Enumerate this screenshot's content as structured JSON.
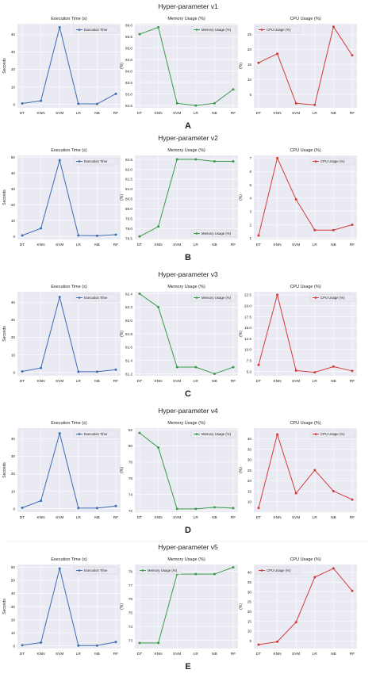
{
  "colors": {
    "execution": "#3d6cb4",
    "memory": "#3a9a4a",
    "cpu": "#d23a3a",
    "plot_bg": "#eaeaf2",
    "grid": "#ffffff"
  },
  "chart_data": [
    {
      "group_title": "Hyper-parameter v1",
      "group_letter": "A",
      "charts": [
        {
          "type": "line",
          "title": "Execution Time (s)",
          "ylabel": "Seconds",
          "series_name": "Execution Time",
          "legend": "top-right",
          "categories": [
            "DT",
            "KNN",
            "SVM",
            "LR",
            "NB",
            "RF"
          ],
          "values": [
            0.5,
            2,
            44,
            0.3,
            0.2,
            6
          ],
          "ylim": [
            -2,
            46
          ],
          "ticks": [
            "0",
            "10",
            "20",
            "30",
            "40"
          ],
          "tick_values": [
            0,
            10,
            20,
            30,
            40
          ]
        },
        {
          "type": "line",
          "title": "Memory Usage (%)",
          "ylabel": "(%)",
          "series_name": "Memory Usage (%)",
          "legend": "top-right",
          "categories": [
            "DT",
            "KNN",
            "SVM",
            "LR",
            "NB",
            "RF"
          ],
          "values": [
            85.6,
            85.9,
            82.6,
            82.5,
            82.6,
            83.2
          ],
          "ylim": [
            82.4,
            86.05
          ],
          "ticks": [
            "82.5",
            "83.0",
            "83.5",
            "84.0",
            "84.5",
            "85.0",
            "85.5",
            "86.0"
          ],
          "tick_values": [
            82.5,
            83.0,
            83.5,
            84.0,
            84.5,
            85.0,
            85.5,
            86.0
          ]
        },
        {
          "type": "line",
          "title": "CPU Usage (%)",
          "ylabel": "(%)",
          "series_name": "CPU Usage (%)",
          "legend": "top-left",
          "categories": [
            "DT",
            "KNN",
            "SVM",
            "LR",
            "NB",
            "RF"
          ],
          "values": [
            15.5,
            18.5,
            2,
            1.5,
            27.5,
            18
          ],
          "ylim": [
            0.5,
            28.5
          ],
          "ticks": [
            "5",
            "10",
            "15",
            "20",
            "25"
          ],
          "tick_values": [
            5,
            10,
            15,
            20,
            25
          ]
        }
      ]
    },
    {
      "group_title": "Hyper-parameter v2",
      "group_letter": "B",
      "charts": [
        {
          "type": "line",
          "title": "Execution Time (s)",
          "ylabel": "Seconds",
          "series_name": "Execution Time",
          "legend": "top-right",
          "categories": [
            "DT",
            "KNN",
            "SVM",
            "LR",
            "NB",
            "RF"
          ],
          "values": [
            0.5,
            5,
            48,
            0.5,
            0.3,
            1
          ],
          "ylim": [
            -2,
            51
          ],
          "ticks": [
            "0",
            "10",
            "20",
            "30",
            "40",
            "50"
          ],
          "tick_values": [
            0,
            10,
            20,
            30,
            40,
            50
          ]
        },
        {
          "type": "line",
          "title": "Memory Usage (%)",
          "ylabel": "(%)",
          "series_name": "Memory Usage (%)",
          "legend": "bottom-right",
          "categories": [
            "DT",
            "KNN",
            "SVM",
            "LR",
            "NB",
            "RF"
          ],
          "values": [
            78.6,
            79.1,
            82.5,
            82.5,
            82.4,
            82.4
          ],
          "ylim": [
            78.45,
            82.7
          ],
          "ticks": [
            "78.5",
            "79.0",
            "79.5",
            "80.0",
            "80.5",
            "81.0",
            "81.5",
            "82.0",
            "82.5"
          ],
          "tick_values": [
            78.5,
            79.0,
            79.5,
            80.0,
            80.5,
            81.0,
            81.5,
            82.0,
            82.5
          ]
        },
        {
          "type": "line",
          "title": "CPU Usage (%)",
          "ylabel": "(%)",
          "series_name": "CPU Usage (%)",
          "legend": "top-right",
          "categories": [
            "DT",
            "KNN",
            "SVM",
            "LR",
            "NB",
            "RF"
          ],
          "values": [
            1.2,
            7,
            3.9,
            1.6,
            1.6,
            2
          ],
          "ylim": [
            0.9,
            7.2
          ],
          "ticks": [
            "1",
            "2",
            "3",
            "4",
            "5",
            "6",
            "7"
          ],
          "tick_values": [
            1,
            2,
            3,
            4,
            5,
            6,
            7
          ]
        }
      ]
    },
    {
      "group_title": "Hyper-parameter v3",
      "group_letter": "C",
      "charts": [
        {
          "type": "line",
          "title": "Execution Time (s)",
          "ylabel": "Seconds",
          "series_name": "Execution Time",
          "legend": "top-right",
          "categories": [
            "DT",
            "KNN",
            "SVM",
            "LR",
            "NB",
            "RF"
          ],
          "values": [
            0.5,
            2.5,
            43,
            0.3,
            0.3,
            1.5
          ],
          "ylim": [
            -2,
            46
          ],
          "ticks": [
            "0",
            "10",
            "20",
            "30",
            "40"
          ],
          "tick_values": [
            0,
            10,
            20,
            30,
            40
          ]
        },
        {
          "type": "line",
          "title": "Memory Usage (%)",
          "ylabel": "(%)",
          "series_name": "Memory Usage (%)",
          "legend": "top-right",
          "categories": [
            "DT",
            "KNN",
            "SVM",
            "LR",
            "NB",
            "RF"
          ],
          "values": [
            82.4,
            82.2,
            81.3,
            81.3,
            81.2,
            81.3
          ],
          "ylim": [
            81.17,
            82.43
          ],
          "ticks": [
            "81.2",
            "81.4",
            "81.6",
            "81.8",
            "82.0",
            "82.2",
            "82.4"
          ],
          "tick_values": [
            81.2,
            81.4,
            81.6,
            81.8,
            82.0,
            82.2,
            82.4
          ]
        },
        {
          "type": "line",
          "title": "CPU Usage (%)",
          "ylabel": "(%)",
          "series_name": "CPU Usage (%)",
          "legend": "top-right",
          "categories": [
            "DT",
            "KNN",
            "SVM",
            "LR",
            "NB",
            "RF"
          ],
          "values": [
            6.5,
            22.5,
            5.2,
            4.8,
            6.1,
            5.1
          ],
          "ylim": [
            4,
            23.2
          ],
          "ticks": [
            "5.0",
            "7.5",
            "10.0",
            "12.5",
            "15.0",
            "17.5",
            "20.0",
            "22.5"
          ],
          "tick_values": [
            5.0,
            7.5,
            10.0,
            12.5,
            15.0,
            17.5,
            20.0,
            22.5
          ]
        }
      ]
    },
    {
      "group_title": "Hyper-parameter v4",
      "group_letter": "D",
      "charts": [
        {
          "type": "line",
          "title": "Execution Time (s)",
          "ylabel": "Seconds",
          "series_name": "Execution Time",
          "legend": "top-right",
          "categories": [
            "DT",
            "KNN",
            "SVM",
            "LR",
            "NB",
            "RF"
          ],
          "values": [
            0.5,
            4.5,
            43,
            0.3,
            0.3,
            1.5
          ],
          "ylim": [
            -2,
            46
          ],
          "ticks": [
            "0",
            "10",
            "20",
            "30",
            "40"
          ],
          "tick_values": [
            0,
            10,
            20,
            30,
            40
          ]
        },
        {
          "type": "line",
          "title": "Memory Usage (%)",
          "ylabel": "(%)",
          "series_name": "Memory Usage (%)",
          "legend": "top-right",
          "categories": [
            "DT",
            "KNN",
            "SVM",
            "LR",
            "NB",
            "RF"
          ],
          "values": [
            81.6,
            79.8,
            72.2,
            72.2,
            72.4,
            72.3
          ],
          "ylim": [
            71.8,
            82.2
          ],
          "ticks": [
            "72",
            "74",
            "76",
            "78",
            "80",
            "82"
          ],
          "tick_values": [
            72,
            74,
            76,
            78,
            80,
            82
          ]
        },
        {
          "type": "line",
          "title": "CPU Usage (%)",
          "ylabel": "(%)",
          "series_name": "CPU Usage (%)",
          "legend": "top-right",
          "categories": [
            "DT",
            "KNN",
            "SVM",
            "LR",
            "NB",
            "RF"
          ],
          "values": [
            7,
            42,
            14,
            25,
            15,
            11
          ],
          "ylim": [
            5,
            45
          ],
          "ticks": [
            "10",
            "15",
            "20",
            "25",
            "30",
            "35",
            "40"
          ],
          "tick_values": [
            10,
            15,
            20,
            25,
            30,
            35,
            40
          ]
        }
      ]
    },
    {
      "group_title": "Hyper-parameter v5",
      "group_letter": "E",
      "charts": [
        {
          "type": "line",
          "title": "Execution Time (s)",
          "ylabel": "Seconds",
          "series_name": "Execution Time",
          "legend": "top-right",
          "categories": [
            "DT",
            "KNN",
            "SVM",
            "LR",
            "NB",
            "RF"
          ],
          "values": [
            0.5,
            2.5,
            59,
            0.3,
            0.3,
            3
          ],
          "ylim": [
            -2,
            62
          ],
          "ticks": [
            "0",
            "10",
            "20",
            "30",
            "40",
            "50",
            "60"
          ],
          "tick_values": [
            0,
            10,
            20,
            30,
            40,
            50,
            60
          ]
        },
        {
          "type": "line",
          "title": "Memory Usage (%)",
          "ylabel": "(%)",
          "series_name": "Memory Usage (%)",
          "legend": "top-left",
          "categories": [
            "DT",
            "KNN",
            "SVM",
            "LR",
            "NB",
            "RF"
          ],
          "values": [
            72.8,
            72.8,
            77.8,
            77.8,
            77.8,
            78.3
          ],
          "ylim": [
            72.4,
            78.5
          ],
          "ticks": [
            "73",
            "74",
            "75",
            "76",
            "77",
            "78"
          ],
          "tick_values": [
            73,
            74,
            75,
            76,
            77,
            78
          ]
        },
        {
          "type": "line",
          "title": "CPU Usage (%)",
          "ylabel": "(%)",
          "series_name": "CPU Usage (%)",
          "legend": "top-left",
          "categories": [
            "DT",
            "KNN",
            "SVM",
            "LR",
            "NB",
            "RF"
          ],
          "values": [
            3,
            4.5,
            14.5,
            37.5,
            42,
            30.5
          ],
          "ylim": [
            1,
            44
          ],
          "ticks": [
            "5",
            "10",
            "15",
            "20",
            "25",
            "30",
            "35",
            "40"
          ],
          "tick_values": [
            5,
            10,
            15,
            20,
            25,
            30,
            35,
            40
          ]
        }
      ]
    }
  ]
}
